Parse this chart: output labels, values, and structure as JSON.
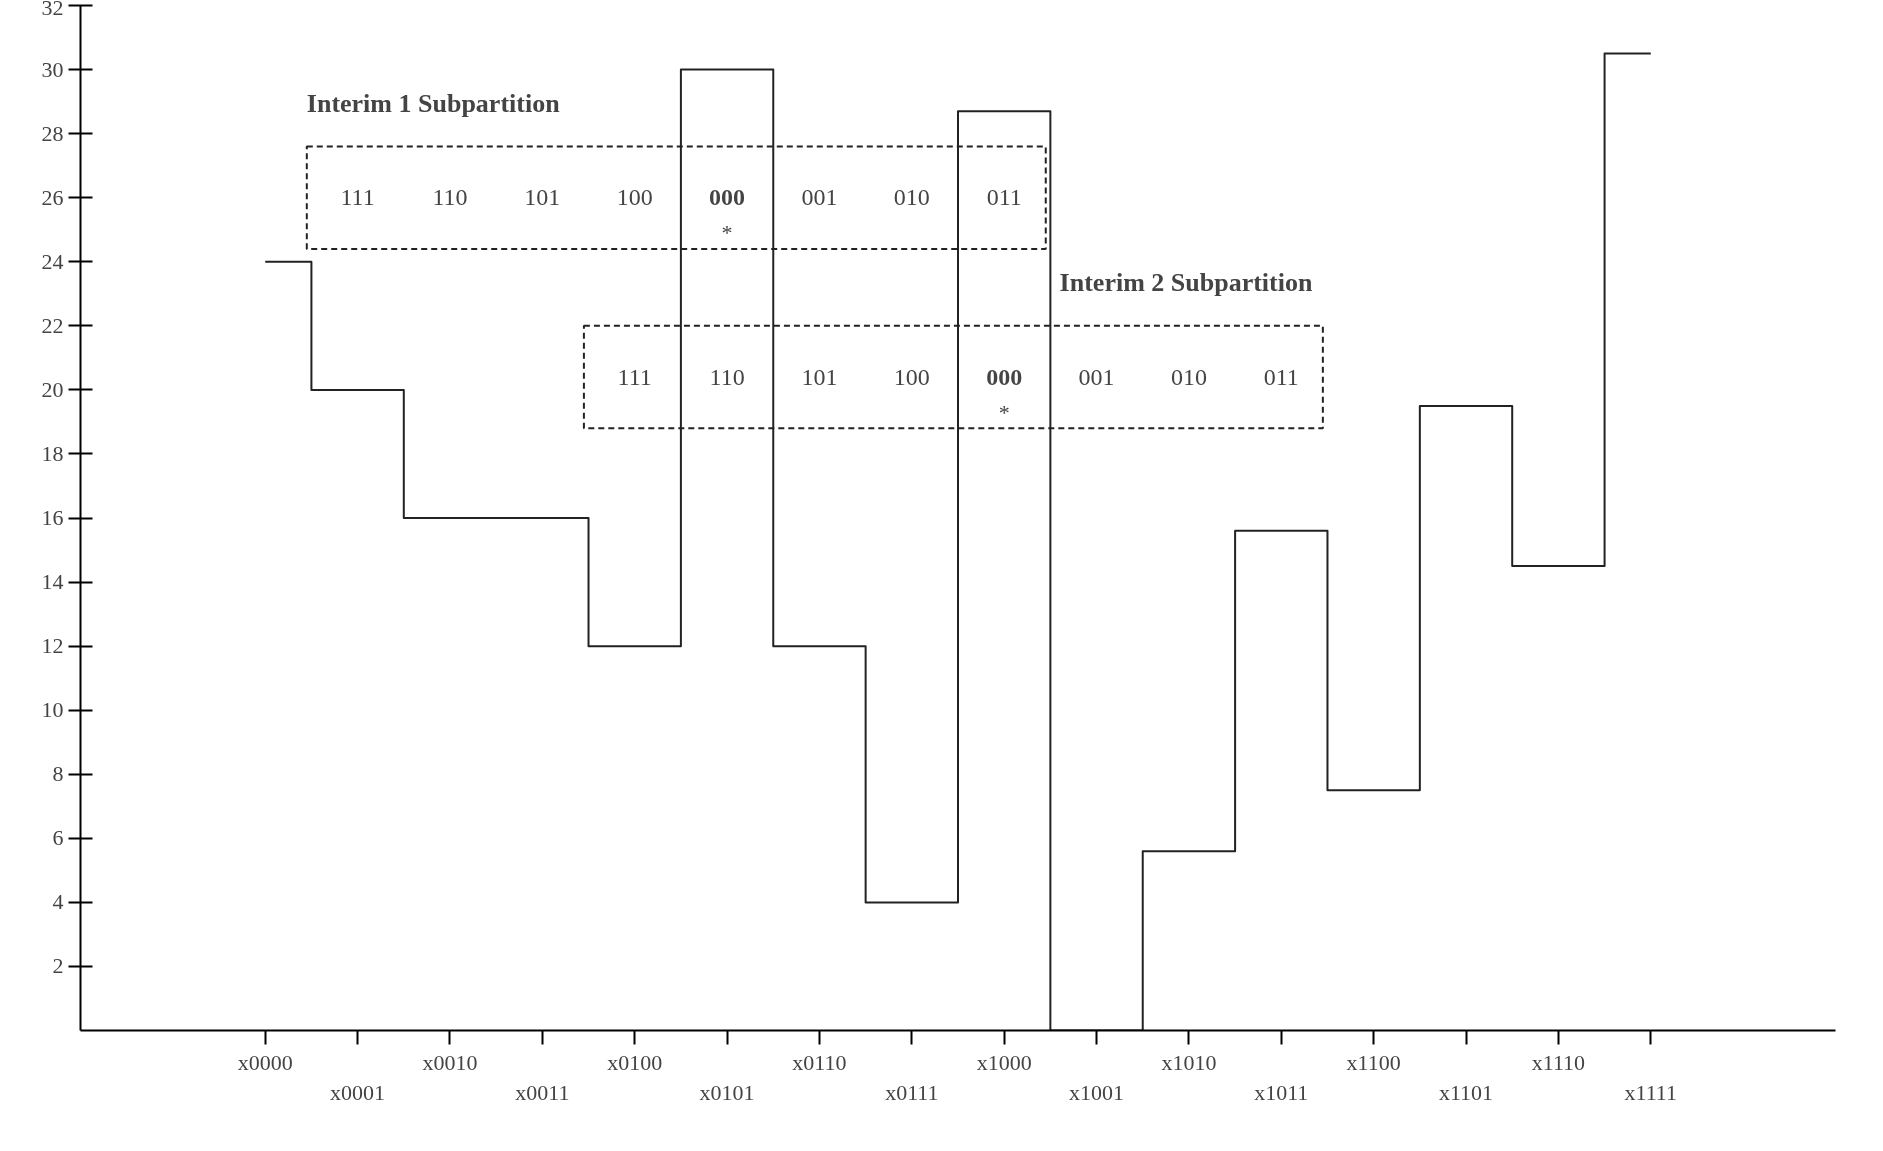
{
  "chart_data": {
    "type": "step",
    "categories": [
      "x0000",
      "x0001",
      "x0010",
      "x0011",
      "x0100",
      "x0101",
      "x0110",
      "x0111",
      "x1000",
      "x1001",
      "x1010",
      "x1011",
      "x1100",
      "x1101",
      "x1110",
      "x1111"
    ],
    "values": [
      24,
      20,
      16,
      16,
      12,
      30,
      12,
      4,
      28.7,
      0,
      5.6,
      15.6,
      7.5,
      19.5,
      14.5,
      30.5
    ],
    "color": "#222222",
    "ylim": [
      0,
      32
    ],
    "yticks": [
      2,
      4,
      6,
      8,
      10,
      12,
      14,
      16,
      18,
      20,
      22,
      24,
      26,
      28,
      30,
      32
    ],
    "grid": false,
    "annotations": [
      "Interim 1 Subpartition",
      "111",
      "110",
      "101",
      "100",
      "000",
      "001",
      "010",
      "011",
      "*",
      "Interim 2 Subpartition",
      "111",
      "110",
      "101",
      "100",
      "000",
      "001",
      "010",
      "011",
      "*"
    ]
  }
}
